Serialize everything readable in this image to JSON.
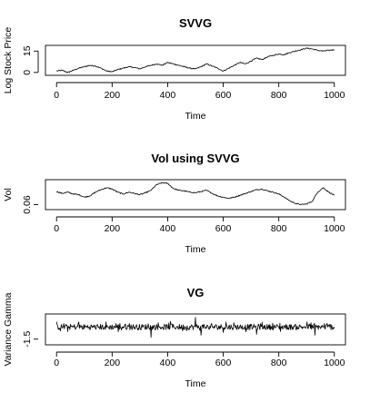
{
  "chart_data": [
    {
      "type": "line",
      "title": "SVVG",
      "xlabel": "Time",
      "ylabel": "Log Stock Price",
      "xlim": [
        0,
        1000
      ],
      "ylim": [
        -2,
        19
      ],
      "x_ticks": [
        0,
        200,
        400,
        600,
        800,
        1000
      ],
      "y_ticks": [
        0,
        15
      ],
      "grid": false,
      "series": [
        {
          "x": [
            0,
            20,
            40,
            60,
            80,
            100,
            120,
            140,
            160,
            180,
            200,
            220,
            240,
            260,
            280,
            300,
            320,
            340,
            360,
            380,
            400,
            420,
            440,
            460,
            480,
            500,
            520,
            540,
            560,
            580,
            600,
            620,
            640,
            660,
            680,
            700,
            720,
            740,
            760,
            780,
            800,
            820,
            840,
            860,
            880,
            900,
            920,
            940,
            960,
            980,
            1000
          ],
          "values": [
            1.0,
            1.5,
            0.0,
            1.5,
            3.0,
            4.0,
            5.0,
            4.5,
            3.0,
            1.0,
            0.5,
            2.0,
            3.0,
            4.0,
            3.5,
            2.5,
            4.0,
            5.0,
            6.0,
            5.0,
            7.0,
            6.0,
            5.0,
            4.0,
            3.0,
            2.5,
            4.0,
            6.0,
            4.5,
            3.0,
            1.0,
            3.0,
            5.0,
            7.0,
            6.0,
            8.0,
            10.0,
            9.0,
            11.0,
            12.0,
            13.0,
            12.5,
            14.0,
            15.0,
            16.0,
            17.0,
            16.5,
            15.5,
            15.0,
            15.5,
            16.0
          ]
        }
      ]
    },
    {
      "type": "line",
      "title": "Vol using SVVG",
      "xlabel": "Time",
      "ylabel": "Vol",
      "xlim": [
        0,
        1000
      ],
      "ylim": [
        0.052,
        0.1
      ],
      "x_ticks": [
        0,
        200,
        400,
        600,
        800,
        1000
      ],
      "y_ticks": [
        0.06
      ],
      "grid": false,
      "series": [
        {
          "x": [
            0,
            20,
            40,
            60,
            80,
            100,
            120,
            140,
            160,
            180,
            200,
            220,
            240,
            260,
            280,
            300,
            320,
            340,
            360,
            380,
            400,
            420,
            440,
            460,
            480,
            500,
            520,
            540,
            560,
            580,
            600,
            620,
            640,
            660,
            680,
            700,
            720,
            740,
            760,
            780,
            800,
            820,
            840,
            860,
            880,
            900,
            920,
            940,
            960,
            980,
            1000
          ],
          "values": [
            0.081,
            0.078,
            0.08,
            0.077,
            0.076,
            0.072,
            0.074,
            0.08,
            0.084,
            0.087,
            0.085,
            0.08,
            0.077,
            0.08,
            0.078,
            0.076,
            0.079,
            0.083,
            0.092,
            0.095,
            0.094,
            0.086,
            0.083,
            0.082,
            0.08,
            0.079,
            0.081,
            0.083,
            0.078,
            0.074,
            0.072,
            0.07,
            0.072,
            0.075,
            0.078,
            0.081,
            0.084,
            0.085,
            0.082,
            0.08,
            0.077,
            0.072,
            0.066,
            0.062,
            0.06,
            0.061,
            0.065,
            0.08,
            0.087,
            0.08,
            0.075
          ]
        }
      ]
    },
    {
      "type": "line",
      "title": "VG",
      "xlabel": "Time",
      "ylabel": "Variance Gamma",
      "xlim": [
        0,
        1000
      ],
      "ylim": [
        -2.2,
        1.6
      ],
      "x_ticks": [
        0,
        200,
        400,
        600,
        800,
        1000
      ],
      "y_ticks": [
        -1.5
      ],
      "grid": false,
      "noise_amplitude": 0.35,
      "spikes": [
        {
          "x": 80,
          "value": 0.6
        },
        {
          "x": 165,
          "value": -0.9
        },
        {
          "x": 195,
          "value": 0.8
        },
        {
          "x": 340,
          "value": -1.3
        },
        {
          "x": 375,
          "value": -1.9
        },
        {
          "x": 410,
          "value": 0.7
        },
        {
          "x": 500,
          "value": 1.2
        },
        {
          "x": 520,
          "value": -1.0
        },
        {
          "x": 610,
          "value": 0.6
        },
        {
          "x": 720,
          "value": -0.9
        },
        {
          "x": 845,
          "value": 1.0
        },
        {
          "x": 930,
          "value": -1.0
        },
        {
          "x": 975,
          "value": 0.5
        }
      ]
    }
  ]
}
